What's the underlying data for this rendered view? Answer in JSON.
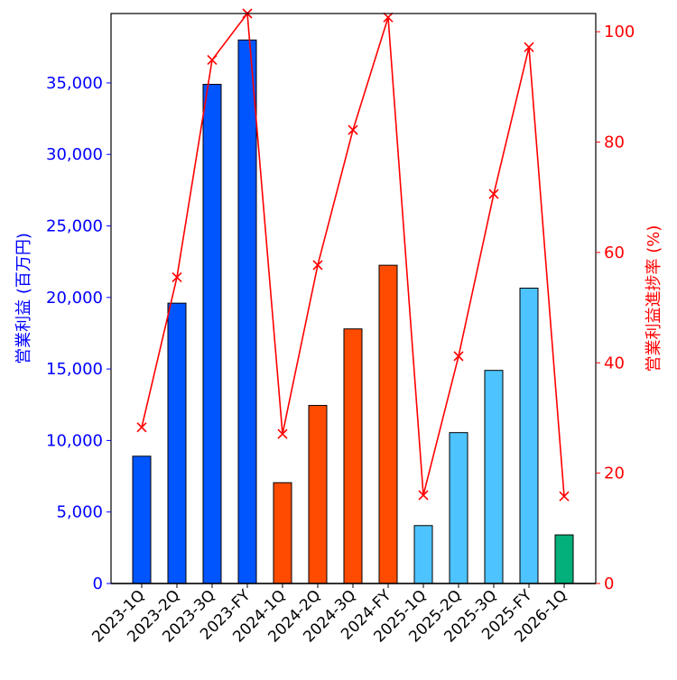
{
  "chart_data": {
    "type": "bar+line",
    "categories": [
      "2023-1Q",
      "2023-2Q",
      "2023-3Q",
      "2023-FY",
      "2024-1Q",
      "2024-2Q",
      "2024-3Q",
      "2024-FY",
      "2025-1Q",
      "2025-2Q",
      "2025-3Q",
      "2025-FY",
      "2026-1Q"
    ],
    "bar_values": [
      8900,
      19600,
      34900,
      38000,
      7050,
      12450,
      17800,
      22250,
      4050,
      10550,
      14900,
      20650,
      3400
    ],
    "bar_colors": [
      "#0055ff",
      "#0055ff",
      "#0055ff",
      "#0055ff",
      "#ff4b00",
      "#ff4b00",
      "#ff4b00",
      "#ff4b00",
      "#4dc4ff",
      "#4dc4ff",
      "#4dc4ff",
      "#4dc4ff",
      "#03af7a"
    ],
    "line_values": [
      28.3,
      55.5,
      94.9,
      103.3,
      27.1,
      57.7,
      82.2,
      102.6,
      16.0,
      41.2,
      70.6,
      97.2,
      15.8
    ],
    "line_color": "#ff0000",
    "line_marker": "x",
    "ylabel_left": "営業利益 (百万円)",
    "ylabel_right": "営業利益進捗率 (%)",
    "ylim_left": [
      0,
      39850
    ],
    "ylim_right": [
      0,
      103.3
    ],
    "yticks_left": [
      0,
      5000,
      10000,
      15000,
      20000,
      25000,
      30000,
      35000
    ],
    "yticks_left_labels": [
      "0",
      "5,000",
      "10,000",
      "15,000",
      "20,000",
      "25,000",
      "30,000",
      "35,000"
    ],
    "yticks_right": [
      0,
      20,
      40,
      60,
      80,
      100
    ],
    "yticks_right_labels": [
      "0",
      "20",
      "40",
      "60",
      "80",
      "100"
    ],
    "left_axis_color": "#0000ff",
    "right_axis_color": "#ff0000",
    "grid": false
  }
}
